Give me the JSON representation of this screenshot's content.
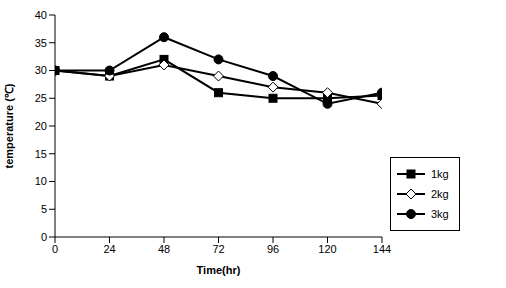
{
  "chart_data": {
    "type": "line",
    "x_label": "Time(hr)",
    "y_label": "temperature (℃)",
    "x": [
      0,
      24,
      48,
      72,
      96,
      120,
      144
    ],
    "xlim": [
      0,
      144
    ],
    "xticks": [
      0,
      24,
      48,
      72,
      96,
      120,
      144
    ],
    "ylim": [
      0,
      40
    ],
    "yticks": [
      0,
      5,
      10,
      15,
      20,
      25,
      30,
      35,
      40
    ],
    "grid": false,
    "legend": "right",
    "series": [
      {
        "name": "1kg",
        "color": "#000000",
        "marker": "square",
        "values": [
          30,
          29,
          32,
          26,
          25,
          25,
          25.5
        ]
      },
      {
        "name": "2kg",
        "color": "#000000",
        "marker": "diamond",
        "values": [
          30,
          29,
          31,
          29,
          27,
          26,
          24
        ]
      },
      {
        "name": "3kg",
        "color": "#000000",
        "marker": "circle",
        "values": [
          30,
          30,
          36,
          32,
          29,
          24,
          26
        ]
      }
    ]
  }
}
